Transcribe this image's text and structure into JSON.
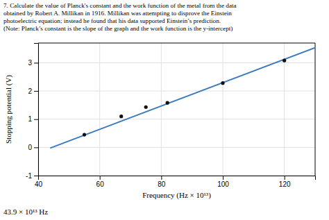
{
  "chart_data": {
    "type": "scatter",
    "title": [
      "7. Calculate the value of Planck's constant and the work function of the metal from the data",
      "obtained by Robert A. Millikan in 1916. Millikan was attempting to disprove the Einstein",
      "photoelectric equation; instead he found that his data supported Einstein’s prediction.",
      "(Note: Planck’s constant is the slope of the graph and the work function is the y-intercept)"
    ],
    "xlabel": "Frequency (Hz × 10¹³)",
    "ylabel": "Stopping potential (V)",
    "annotations": [
      "43.9 × 10¹³ Hz"
    ],
    "series": [
      {
        "type": "line",
        "color": "#3a7abf",
        "x": [
          43.9,
          130
        ],
        "values": [
          -0.024735,
          3.5355
        ]
      },
      {
        "type": "scatter",
        "color": "#111111",
        "x": [
          55,
          67,
          75,
          82,
          100,
          120
        ],
        "values": [
          0.45,
          1.1,
          1.43,
          1.58,
          2.28,
          3.08
        ]
      }
    ],
    "xlim": [
      40,
      130
    ],
    "xticks": [
      40,
      60,
      80,
      100,
      120
    ],
    "ylim": [
      -1,
      3.7
    ],
    "yticks": [
      -1,
      0,
      1,
      2,
      3
    ],
    "grid": true
  }
}
